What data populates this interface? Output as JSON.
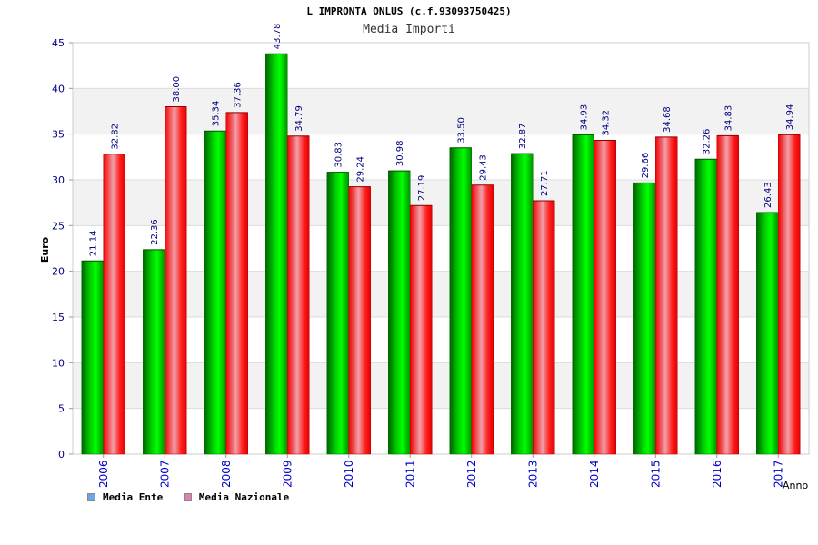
{
  "chart_data": {
    "type": "bar",
    "title": "L IMPRONTA ONLUS (c.f.93093750425)",
    "subtitle": "Media Importi",
    "xlabel": "Anno",
    "ylabel": "Euro",
    "ylim": [
      0,
      45
    ],
    "yticks": [
      0,
      5,
      10,
      15,
      20,
      25,
      30,
      35,
      40,
      45
    ],
    "grid": true,
    "legend_position": "bottom-left",
    "categories": [
      "2006",
      "2007",
      "2008",
      "2009",
      "2010",
      "2011",
      "2012",
      "2013",
      "2014",
      "2015",
      "2016",
      "2017"
    ],
    "series": [
      {
        "name": "Media Ente",
        "color": "#00c000",
        "legend_color": "#6aa6e8",
        "values": [
          21.14,
          22.36,
          35.34,
          43.78,
          30.83,
          30.98,
          33.5,
          32.87,
          34.93,
          29.66,
          32.26,
          26.43
        ],
        "labels": [
          "21.14",
          "22.36",
          "35.34",
          "43.78",
          "30.83",
          "30.98",
          "33.50",
          "32.87",
          "34.93",
          "29.66",
          "32.26",
          "26.43"
        ]
      },
      {
        "name": "Media Nazionale",
        "color": "#ff1010",
        "legend_color": "#e080b0",
        "values": [
          32.82,
          38.0,
          37.36,
          34.79,
          29.24,
          27.19,
          29.43,
          27.71,
          34.32,
          34.68,
          34.83,
          34.94
        ],
        "labels": [
          "32.82",
          "38.00",
          "37.36",
          "34.79",
          "29.24",
          "27.19",
          "29.43",
          "27.71",
          "34.32",
          "34.68",
          "34.83",
          "34.94"
        ]
      }
    ]
  }
}
